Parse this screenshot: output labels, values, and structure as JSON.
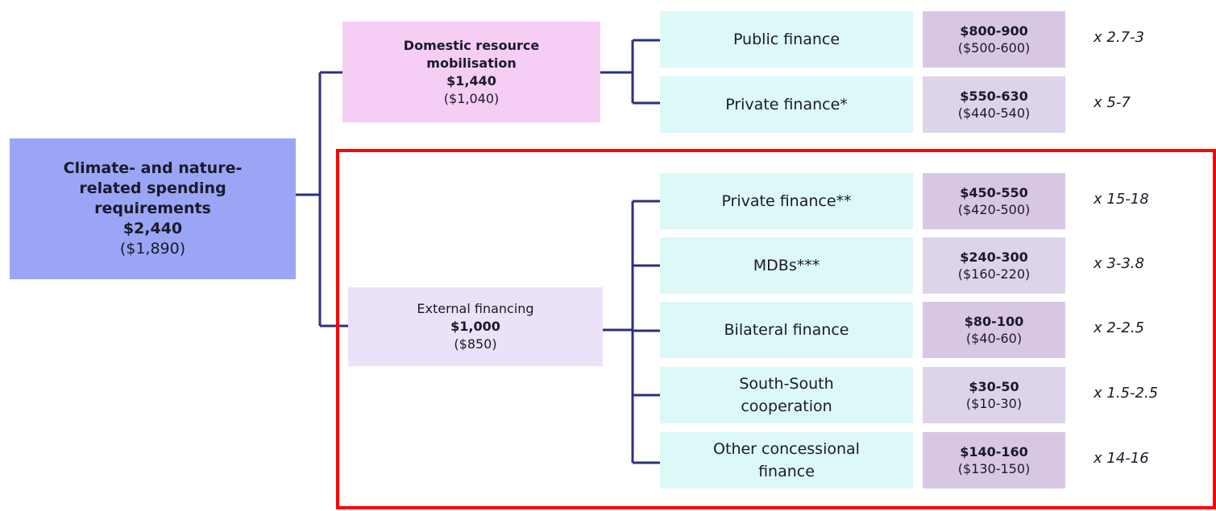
{
  "root": {
    "title": [
      "Climate- and nature-",
      "related spending",
      "requirements"
    ],
    "value": "$2,440",
    "previous": "($1,890)"
  },
  "branches": [
    {
      "label": [
        "Domestic resource",
        "mobilisation"
      ],
      "value": "$1,440",
      "previous": "($1,040)",
      "sources": [
        {
          "label": [
            "Public finance"
          ],
          "range": "$800-900",
          "previous": "($500-600)",
          "multiplier": "x 2.7-3"
        },
        {
          "label": [
            "Private finance*"
          ],
          "range": "$550-630",
          "previous": "($440-540)",
          "multiplier": "x 5-7"
        }
      ]
    },
    {
      "label": [
        "External financing"
      ],
      "value": "$1,000",
      "previous": "($850)",
      "sources": [
        {
          "label": [
            "Private finance**"
          ],
          "range": "$450-550",
          "previous": "($420-500)",
          "multiplier": "x 15-18"
        },
        {
          "label": [
            "MDBs***"
          ],
          "range": "$240-300",
          "previous": "($160-220)",
          "multiplier": "x 3-3.8"
        },
        {
          "label": [
            "Bilateral finance"
          ],
          "range": "$80-100",
          "previous": "($40-60)",
          "multiplier": "x 2-2.5"
        },
        {
          "label": [
            "South-South",
            "cooperation"
          ],
          "range": "$30-50",
          "previous": "($10-30)",
          "multiplier": "x 1.5-2.5"
        },
        {
          "label": [
            "Other concessional",
            "finance"
          ],
          "range": "$140-160",
          "previous": "($130-150)",
          "multiplier": "x 14-16"
        }
      ]
    }
  ]
}
